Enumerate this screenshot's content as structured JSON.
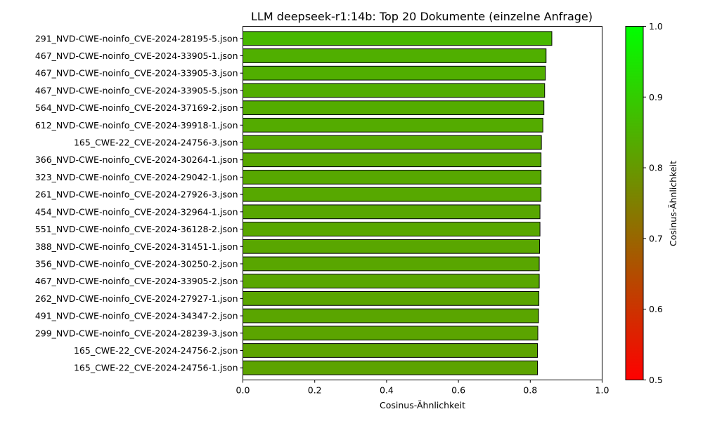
{
  "chart_data": {
    "type": "bar",
    "orientation": "horizontal",
    "title": "LLM deepseek-r1:14b: Top 20 Dokumente (einzelne Anfrage)",
    "xlabel": "Cosinus-Ähnlichkeit",
    "ylabel": "",
    "xlim": [
      0.0,
      1.0
    ],
    "xticks": [
      "0.0",
      "0.2",
      "0.4",
      "0.6",
      "0.8",
      "1.0"
    ],
    "grid": false,
    "categories": [
      "291_NVD-CWE-noinfo_CVE-2024-28195-5.json",
      "467_NVD-CWE-noinfo_CVE-2024-33905-1.json",
      "467_NVD-CWE-noinfo_CVE-2024-33905-3.json",
      "467_NVD-CWE-noinfo_CVE-2024-33905-5.json",
      "564_NVD-CWE-noinfo_CVE-2024-37169-2.json",
      "612_NVD-CWE-noinfo_CVE-2024-39918-1.json",
      "165_CWE-22_CVE-2024-24756-3.json",
      "366_NVD-CWE-noinfo_CVE-2024-30264-1.json",
      "323_NVD-CWE-noinfo_CVE-2024-29042-1.json",
      "261_NVD-CWE-noinfo_CVE-2024-27926-3.json",
      "454_NVD-CWE-noinfo_CVE-2024-32964-1.json",
      "551_NVD-CWE-noinfo_CVE-2024-36128-2.json",
      "388_NVD-CWE-noinfo_CVE-2024-31451-1.json",
      "356_NVD-CWE-noinfo_CVE-2024-30250-2.json",
      "467_NVD-CWE-noinfo_CVE-2024-33905-2.json",
      "262_NVD-CWE-noinfo_CVE-2024-27927-1.json",
      "491_NVD-CWE-noinfo_CVE-2024-34347-2.json",
      "299_NVD-CWE-noinfo_CVE-2024-28239-3.json",
      "165_CWE-22_CVE-2024-24756-2.json",
      "165_CWE-22_CVE-2024-24756-1.json"
    ],
    "values": [
      0.86,
      0.844,
      0.842,
      0.84,
      0.838,
      0.835,
      0.831,
      0.83,
      0.83,
      0.83,
      0.827,
      0.827,
      0.826,
      0.825,
      0.825,
      0.824,
      0.823,
      0.821,
      0.82,
      0.82
    ],
    "bar_edge_color": "#000000",
    "colorbar": {
      "label": "Cosinus-Ähnlichkeit",
      "range": [
        0.5,
        1.0
      ],
      "ticks": [
        "0.5",
        "0.6",
        "0.7",
        "0.8",
        "0.9",
        "1.0"
      ],
      "color_low": "#ff0000",
      "color_high": "#00ff00"
    }
  }
}
